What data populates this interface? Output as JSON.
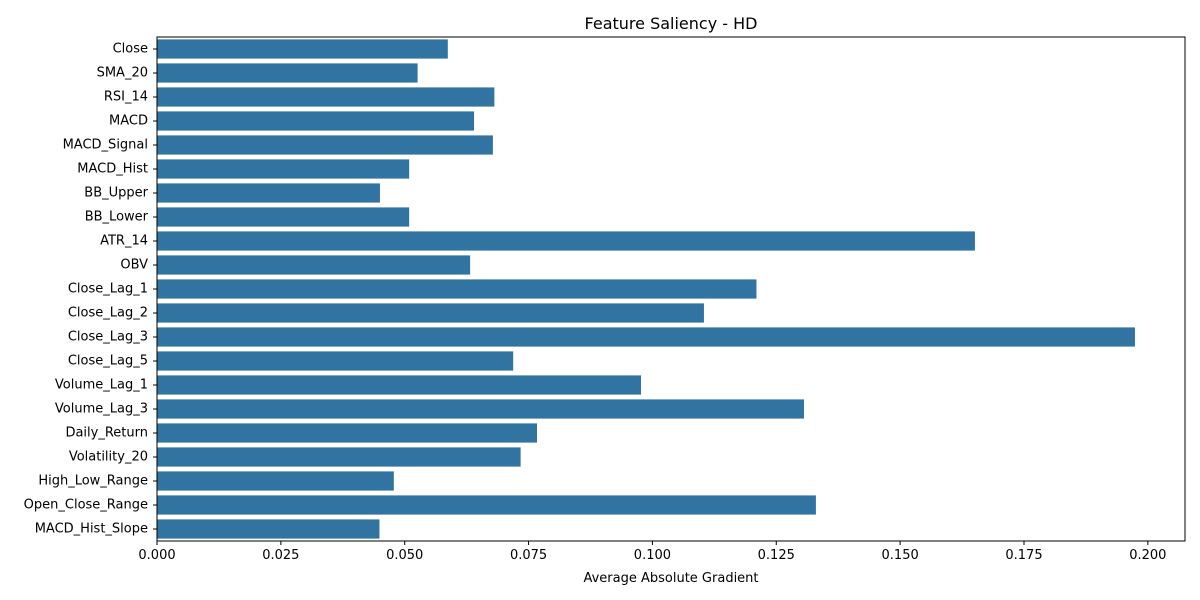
{
  "chart_data": {
    "type": "bar",
    "orientation": "horizontal",
    "title": "Feature Saliency - HD",
    "xlabel": "Average Absolute Gradient",
    "ylabel": "",
    "categories": [
      "Close",
      "SMA_20",
      "RSI_14",
      "MACD",
      "MACD_Signal",
      "MACD_Hist",
      "BB_Upper",
      "BB_Lower",
      "ATR_14",
      "OBV",
      "Close_Lag_1",
      "Close_Lag_2",
      "Close_Lag_3",
      "Close_Lag_5",
      "Volume_Lag_1",
      "Volume_Lag_3",
      "Daily_Return",
      "Volatility_20",
      "High_Low_Range",
      "Open_Close_Range",
      "MACD_Hist_Slope"
    ],
    "values": [
      0.0587,
      0.0526,
      0.0681,
      0.064,
      0.0678,
      0.0509,
      0.045,
      0.0509,
      0.1651,
      0.0632,
      0.121,
      0.1104,
      0.1974,
      0.0719,
      0.0977,
      0.1306,
      0.0767,
      0.0734,
      0.0478,
      0.133,
      0.0449
    ],
    "xlim": [
      0,
      0.2075
    ],
    "xticks": [
      "0.000",
      "0.025",
      "0.050",
      "0.075",
      "0.100",
      "0.125",
      "0.150",
      "0.175",
      "0.200"
    ],
    "xtick_values": [
      0,
      0.025,
      0.05,
      0.075,
      0.1,
      0.125,
      0.15,
      0.175,
      0.2
    ],
    "bar_color": "#3274a1",
    "grid": false
  }
}
